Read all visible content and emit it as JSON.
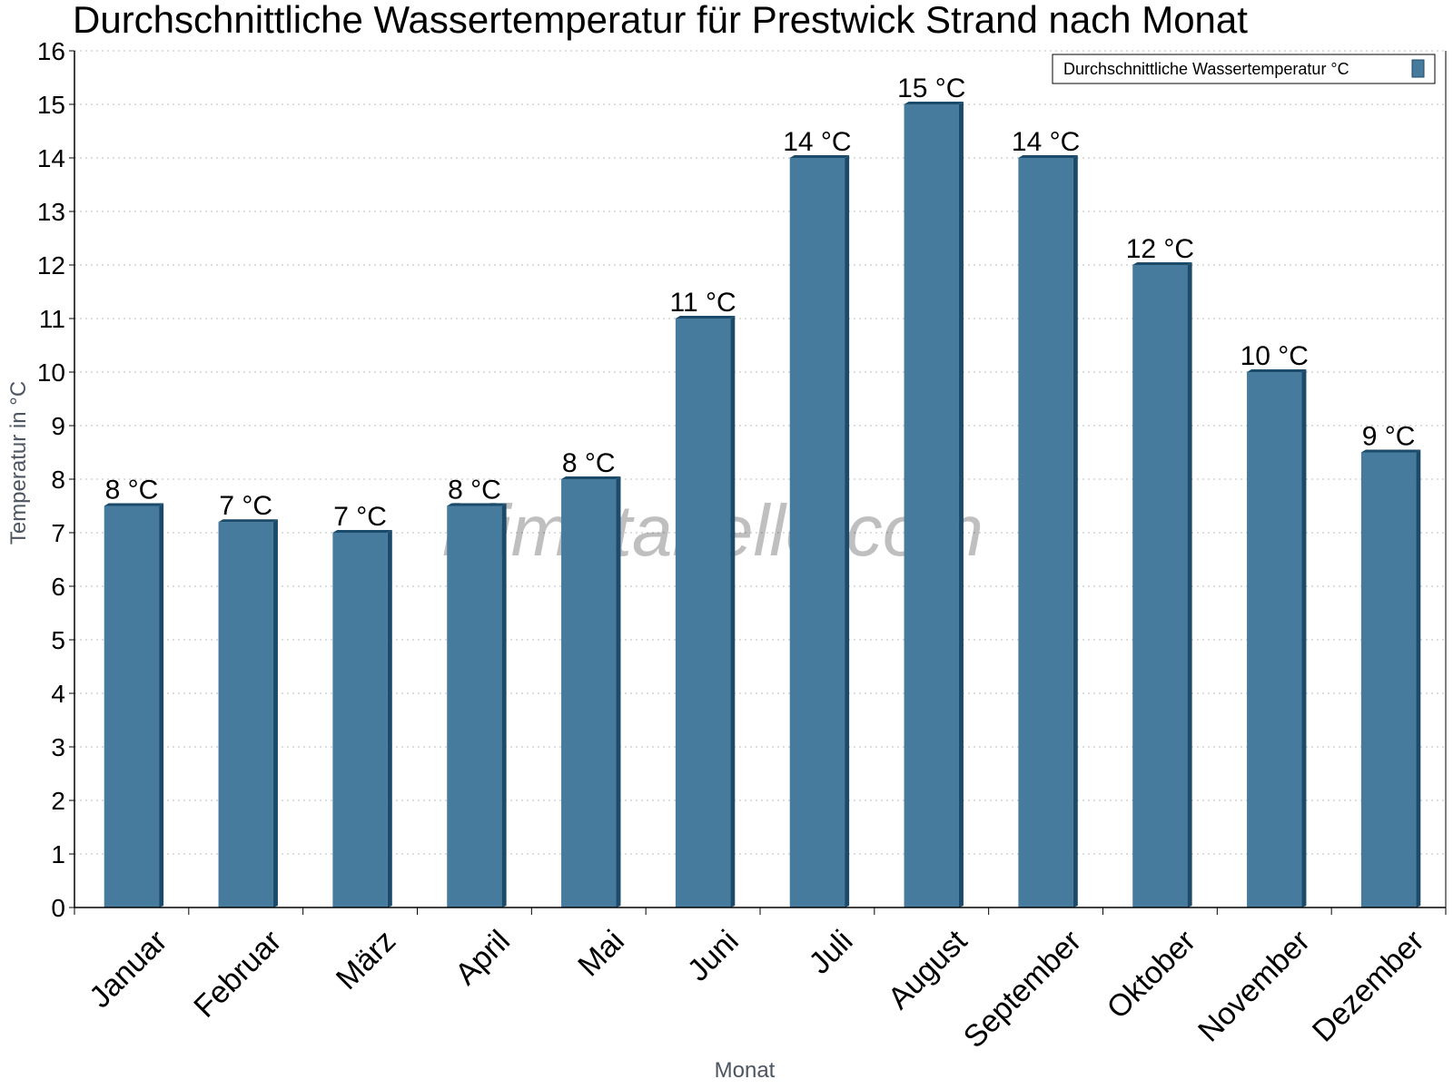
{
  "chart_data": {
    "type": "bar",
    "title": "Durchschnittliche Wassertemperatur für Prestwick Strand nach Monat",
    "xlabel": "Monat",
    "ylabel": "Temperatur in °C",
    "ylim": [
      0,
      16
    ],
    "yticks": [
      0,
      1,
      2,
      3,
      4,
      5,
      6,
      7,
      8,
      9,
      10,
      11,
      12,
      13,
      14,
      15,
      16
    ],
    "grid": true,
    "legend_position": "top-right",
    "categories": [
      "Januar",
      "Februar",
      "März",
      "April",
      "Mai",
      "Juni",
      "Juli",
      "August",
      "September",
      "Oktober",
      "November",
      "Dezember"
    ],
    "series": [
      {
        "name": "Durchschnittliche Wassertemperatur °C",
        "color": "#467b9e",
        "values": [
          7.5,
          7.2,
          7.0,
          7.5,
          8.0,
          11.0,
          14.0,
          15.0,
          14.0,
          12.0,
          10.0,
          8.5
        ],
        "data_labels": [
          "8 °C",
          "7 °C",
          "7 °C",
          "8 °C",
          "8 °C",
          "11 °C",
          "14 °C",
          "15 °C",
          "14 °C",
          "12 °C",
          "10 °C",
          "9 °C"
        ]
      }
    ]
  },
  "watermark": "klimatabelle.com",
  "colors": {
    "bar_fill": "#467b9e",
    "bar_edge": "#1b4a6b",
    "grid": "#bbbbbb",
    "axis": "#000000"
  }
}
